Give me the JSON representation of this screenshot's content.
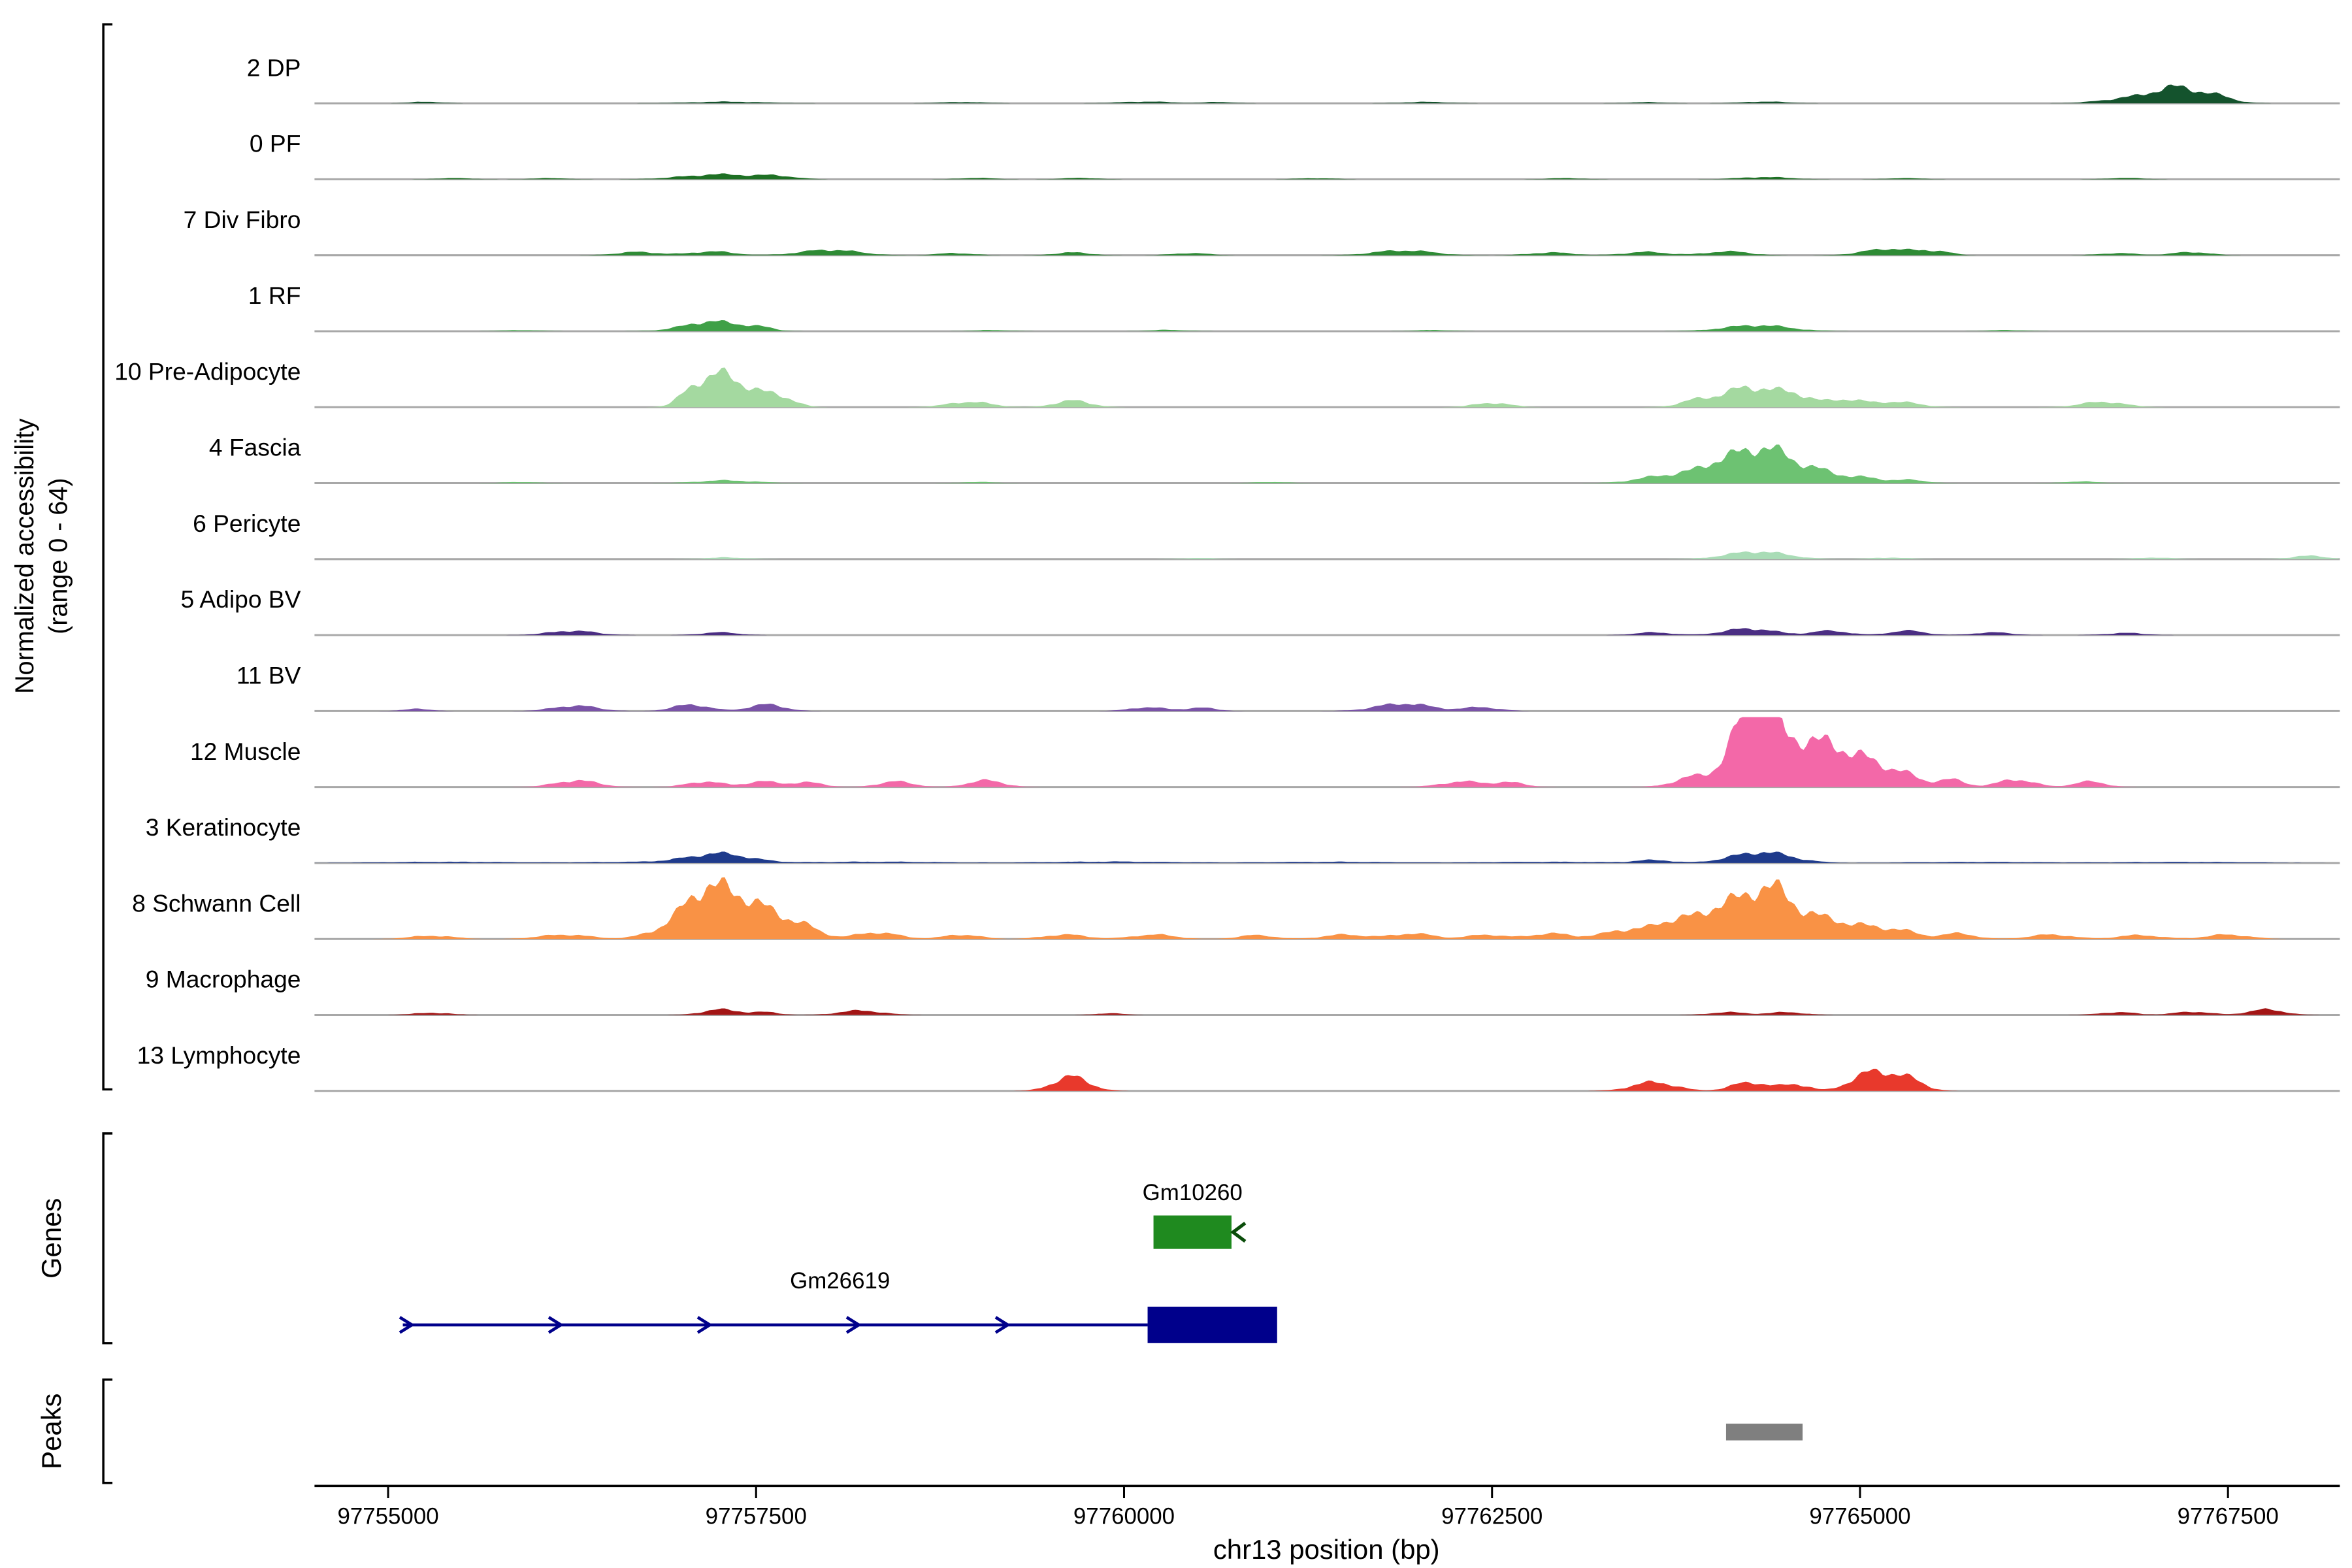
{
  "chart_data": {
    "type": "area",
    "title": "",
    "xlabel": "chr13 position (bp)",
    "ylabel_line1": "Normalized accessibility",
    "ylabel_line2": "(range 0 - 64)",
    "genes_section_label": "Genes",
    "peaks_section_label": "Peaks",
    "x_range_bp": [
      97754500,
      97768260
    ],
    "x_ticks": [
      97755000,
      97757500,
      97760000,
      97762500,
      97765000,
      97767500
    ],
    "y_range_per_track": [
      0,
      64
    ],
    "baseline_color": "#A8A8A8",
    "peak_color": "#7F7F7F",
    "tracks": [
      {
        "label": "2 DP",
        "color": "#14532D",
        "peaks": [
          [
            97755260,
            200,
            1.5
          ],
          [
            97757300,
            500,
            1.5
          ],
          [
            97758900,
            300,
            1.2
          ],
          [
            97760150,
            350,
            1.6
          ],
          [
            97760650,
            200,
            1.2
          ],
          [
            97762050,
            300,
            1.3
          ],
          [
            97763550,
            250,
            1
          ],
          [
            97764350,
            300,
            1.6
          ],
          [
            97766850,
            400,
            5
          ],
          [
            97767150,
            300,
            13
          ],
          [
            97767420,
            250,
            6
          ]
        ]
      },
      {
        "label": "0 PF",
        "color": "#1E7024",
        "peaks": [
          [
            97755450,
            250,
            1
          ],
          [
            97756100,
            250,
            1
          ],
          [
            97757250,
            500,
            4.5
          ],
          [
            97757650,
            250,
            2.5
          ],
          [
            97759000,
            250,
            1.2
          ],
          [
            97759700,
            250,
            1.2
          ],
          [
            97761300,
            250,
            1
          ],
          [
            97763000,
            250,
            1
          ],
          [
            97764350,
            350,
            2
          ],
          [
            97765300,
            250,
            1
          ],
          [
            97766800,
            250,
            1.2
          ]
        ]
      },
      {
        "label": "7 Div Fibro",
        "color": "#2E8B35",
        "peaks": [
          [
            97756700,
            300,
            3
          ],
          [
            97757200,
            300,
            3.5
          ],
          [
            97758000,
            400,
            5
          ],
          [
            97758850,
            250,
            2
          ],
          [
            97759650,
            250,
            2.5
          ],
          [
            97760450,
            250,
            2
          ],
          [
            97761900,
            400,
            4.5
          ],
          [
            97762900,
            300,
            2.5
          ],
          [
            97763550,
            300,
            3
          ],
          [
            97764100,
            300,
            3.5
          ],
          [
            97765200,
            350,
            6
          ],
          [
            97765520,
            200,
            3.5
          ],
          [
            97766750,
            250,
            2
          ],
          [
            97767250,
            250,
            3
          ]
        ]
      },
      {
        "label": "1 RF",
        "color": "#3FA047",
        "peaks": [
          [
            97755900,
            250,
            1
          ],
          [
            97757200,
            380,
            9
          ],
          [
            97757520,
            200,
            3
          ],
          [
            97759100,
            250,
            1
          ],
          [
            97760300,
            250,
            1.2
          ],
          [
            97762100,
            250,
            1
          ],
          [
            97764300,
            450,
            5.5
          ],
          [
            97766000,
            250,
            1
          ]
        ]
      },
      {
        "label": "10 Pre-Adipocyte",
        "color": "#A4D9A0",
        "peaks": [
          [
            97757080,
            200,
            16
          ],
          [
            97757260,
            220,
            24
          ],
          [
            97757460,
            250,
            14
          ],
          [
            97757680,
            200,
            8
          ],
          [
            97758950,
            300,
            5
          ],
          [
            97759650,
            250,
            6
          ],
          [
            97762500,
            250,
            4
          ],
          [
            97763900,
            250,
            6
          ],
          [
            97764250,
            350,
            18
          ],
          [
            97764560,
            250,
            10
          ],
          [
            97764900,
            250,
            7
          ],
          [
            97765250,
            300,
            5
          ],
          [
            97766650,
            300,
            5
          ]
        ]
      },
      {
        "label": "4 Fascia",
        "color": "#6DC272",
        "peaks": [
          [
            97755900,
            250,
            1
          ],
          [
            97757300,
            400,
            2.5
          ],
          [
            97759000,
            250,
            1
          ],
          [
            97761000,
            250,
            1
          ],
          [
            97763700,
            400,
            7
          ],
          [
            97764100,
            350,
            20
          ],
          [
            97764380,
            300,
            26
          ],
          [
            97764680,
            300,
            12
          ],
          [
            97765000,
            250,
            5
          ],
          [
            97765320,
            250,
            3
          ],
          [
            97766500,
            250,
            1.5
          ]
        ]
      },
      {
        "label": "6 Pericyte",
        "color": "#A9DCB6",
        "peaks": [
          [
            97757300,
            300,
            1.5
          ],
          [
            97760500,
            250,
            1
          ],
          [
            97764300,
            420,
            7
          ],
          [
            97765200,
            250,
            1.5
          ],
          [
            97767000,
            250,
            1.5
          ],
          [
            97768050,
            250,
            3
          ]
        ]
      },
      {
        "label": "5 Adipo BV",
        "color": "#4B2E83",
        "peaks": [
          [
            97756250,
            320,
            4
          ],
          [
            97757250,
            250,
            2.5
          ],
          [
            97763600,
            250,
            2.5
          ],
          [
            97764250,
            350,
            6
          ],
          [
            97764800,
            250,
            4
          ],
          [
            97765320,
            250,
            4
          ],
          [
            97765900,
            250,
            2.5
          ],
          [
            97766800,
            250,
            2
          ]
        ]
      },
      {
        "label": "11 BV",
        "color": "#7A52A8",
        "peaks": [
          [
            97755200,
            200,
            2
          ],
          [
            97756270,
            300,
            5
          ],
          [
            97757060,
            250,
            6
          ],
          [
            97757570,
            250,
            6
          ],
          [
            97760160,
            250,
            3.5
          ],
          [
            97760520,
            220,
            3
          ],
          [
            97761900,
            380,
            7
          ],
          [
            97762430,
            250,
            3.5
          ]
        ]
      },
      {
        "label": "12 Muscle",
        "color": "#F368A8",
        "peaks": [
          [
            97756280,
            300,
            6
          ],
          [
            97757150,
            250,
            5
          ],
          [
            97757550,
            250,
            5
          ],
          [
            97757860,
            220,
            4
          ],
          [
            97758450,
            250,
            5
          ],
          [
            97759060,
            250,
            6
          ],
          [
            97762300,
            300,
            5
          ],
          [
            97762620,
            220,
            4
          ],
          [
            97763900,
            300,
            10
          ],
          [
            97764200,
            220,
            48
          ],
          [
            97764340,
            180,
            62
          ],
          [
            97764520,
            250,
            32
          ],
          [
            97764760,
            300,
            34
          ],
          [
            97765010,
            250,
            20
          ],
          [
            97765260,
            250,
            14
          ],
          [
            97765610,
            200,
            7
          ],
          [
            97766060,
            250,
            7
          ],
          [
            97766560,
            220,
            5
          ]
        ]
      },
      {
        "label": "3 Keratinocyte",
        "color": "#1F3B8C",
        "peaks": [
          [
            97755400,
            900,
            1.1
          ],
          [
            97756800,
            900,
            1.1
          ],
          [
            97757250,
            420,
            8
          ],
          [
            97758300,
            900,
            1.2
          ],
          [
            97759900,
            900,
            1.3
          ],
          [
            97761400,
            900,
            1.1
          ],
          [
            97762900,
            900,
            1.1
          ],
          [
            97763600,
            250,
            2.5
          ],
          [
            97764330,
            420,
            10
          ],
          [
            97765800,
            900,
            1
          ],
          [
            97767200,
            900,
            1
          ]
        ]
      },
      {
        "label": "8 Schwann Cell",
        "color": "#F99245",
        "peaks": [
          [
            97755300,
            300,
            3
          ],
          [
            97756200,
            350,
            4
          ],
          [
            97756900,
            300,
            9
          ],
          [
            97757110,
            250,
            30
          ],
          [
            97757320,
            300,
            34
          ],
          [
            97757570,
            300,
            20
          ],
          [
            97757820,
            250,
            10
          ],
          [
            97758320,
            300,
            6
          ],
          [
            97758900,
            250,
            4
          ],
          [
            97759600,
            300,
            4
          ],
          [
            97760200,
            300,
            4
          ],
          [
            97760900,
            250,
            3.5
          ],
          [
            97761500,
            300,
            4
          ],
          [
            97761960,
            300,
            5
          ],
          [
            97762460,
            250,
            4
          ],
          [
            97762900,
            300,
            5
          ],
          [
            97763400,
            300,
            8
          ],
          [
            97763760,
            300,
            18
          ],
          [
            97764060,
            250,
            26
          ],
          [
            97764360,
            300,
            46
          ],
          [
            97764660,
            300,
            18
          ],
          [
            97764960,
            300,
            12
          ],
          [
            97765260,
            250,
            8
          ],
          [
            97765660,
            250,
            5
          ],
          [
            97766300,
            300,
            4
          ],
          [
            97766900,
            300,
            3.5
          ],
          [
            97767500,
            300,
            4
          ]
        ]
      },
      {
        "label": "9 Macrophage",
        "color": "#A31515",
        "peaks": [
          [
            97755300,
            250,
            2
          ],
          [
            97757260,
            250,
            5
          ],
          [
            97757560,
            200,
            2.5
          ],
          [
            97758210,
            300,
            4
          ],
          [
            97759900,
            200,
            1.5
          ],
          [
            97764100,
            250,
            2.5
          ],
          [
            97764500,
            250,
            2.5
          ],
          [
            97766750,
            250,
            2.5
          ],
          [
            97767260,
            250,
            3
          ],
          [
            97767760,
            250,
            5
          ]
        ]
      },
      {
        "label": "13 Lymphocyte",
        "color": "#E8392C",
        "peaks": [
          [
            97759640,
            250,
            13
          ],
          [
            97763600,
            300,
            8
          ],
          [
            97764250,
            250,
            8
          ],
          [
            97764560,
            200,
            6
          ],
          [
            97764950,
            200,
            4
          ],
          [
            97765110,
            250,
            16
          ],
          [
            97765330,
            220,
            10
          ]
        ]
      }
    ],
    "genes": [
      {
        "name": "Gm10260",
        "strand": "-",
        "color": "#1F8A1F",
        "start_bp": 97760200,
        "end_bp": 97760730
      },
      {
        "name": "Gm26619",
        "strand": "+",
        "color": "#00008B",
        "start_bp": 97755100,
        "end_bp": 97761040,
        "exon_start_bp": 97760160,
        "exon_end_bp": 97761040
      }
    ],
    "peaks_track": [
      {
        "start_bp": 97764090,
        "end_bp": 97764610
      }
    ]
  }
}
